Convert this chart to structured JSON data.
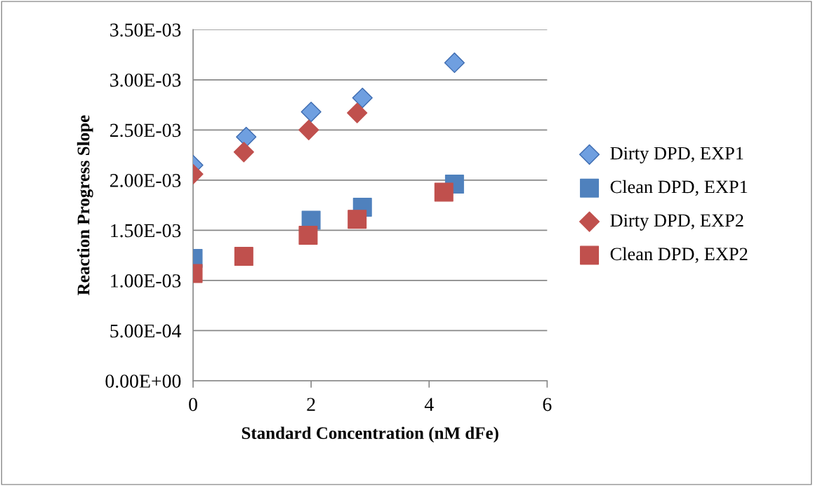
{
  "chart_data": {
    "type": "scatter",
    "xlabel": "Standard Concentration (nM dFe)",
    "ylabel": "Reaction Progress Slope",
    "xlim": [
      0,
      6
    ],
    "xticks": [
      0,
      2,
      4,
      6
    ],
    "ylim": [
      0,
      0.0035
    ],
    "yticks": [
      {
        "value": 0,
        "label": "0.00E+00"
      },
      {
        "value": 0.0005,
        "label": "5.00E-04"
      },
      {
        "value": 0.001,
        "label": "1.00E-03"
      },
      {
        "value": 0.0015,
        "label": "1.50E-03"
      },
      {
        "value": 0.002,
        "label": "2.00E-03"
      },
      {
        "value": 0.0025,
        "label": "2.50E-03"
      },
      {
        "value": 0.003,
        "label": "3.00E-03"
      },
      {
        "value": 0.0035,
        "label": "3.50E-03"
      }
    ],
    "grid": "y",
    "legend": "right",
    "series": [
      {
        "name": "Dirty DPD, EXP1",
        "color": "#6f9fe0",
        "marker": "diamond",
        "x": [
          0,
          0.9,
          2.0,
          2.87,
          4.43
        ],
        "values": [
          0.00215,
          0.00243,
          0.00268,
          0.00282,
          0.00317
        ]
      },
      {
        "name": "Clean DPD, EXP1",
        "color": "#4f81bd",
        "marker": "square",
        "x": [
          0,
          2.0,
          2.87,
          4.43
        ],
        "values": [
          0.00122,
          0.0016,
          0.00173,
          0.00196
        ]
      },
      {
        "name": "Dirty DPD, EXP2",
        "color": "#c0504d",
        "marker": "diamond",
        "x": [
          0,
          0.86,
          1.96,
          2.78
        ],
        "values": [
          0.00206,
          0.00228,
          0.0025,
          0.00267
        ]
      },
      {
        "name": "Clean DPD, EXP2",
        "color": "#c0504d",
        "marker": "square",
        "x": [
          0,
          0.86,
          1.95,
          2.78,
          4.25
        ],
        "values": [
          0.00107,
          0.00124,
          0.00145,
          0.00161,
          0.00188
        ]
      }
    ]
  }
}
